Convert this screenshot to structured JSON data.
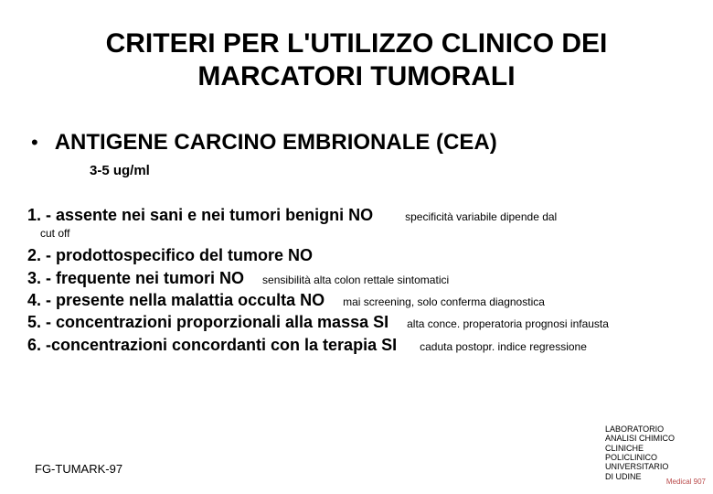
{
  "title": "CRITERI PER L'UTILIZZO CLINICO DEI MARCATORI TUMORALI",
  "bullet_char": "•",
  "subtitle": "ANTIGENE CARCINO EMBRIONALE (CEA)",
  "range": "3-5 ug/ml",
  "criteria": [
    {
      "main": "1. - assente nei sani e nei tumori benigni          NO",
      "note": "specificità variabile dipende dal"
    },
    {
      "cutoff": "cut off"
    },
    {
      "main": "2. - prodottospecifico del tumore          NO",
      "note": ""
    },
    {
      "main": "3. - frequente nei tumori             NO",
      "note": "sensibilità alta colon rettale sintomatici"
    },
    {
      "main": "4. - presente nella malattia occulta         NO",
      "note": "mai screening, solo conferma diagnostica"
    },
    {
      "main": "5. - concentrazioni proporzionali alla massa    SI",
      "note": "alta conce. properatoria prognosi infausta"
    },
    {
      "main": "6. -concentrazioni concordanti con la terapia  SI",
      "note": "caduta postopr. indice regressione"
    }
  ],
  "footer_left": "FG-TUMARK-97",
  "footer_right_lines": [
    "LABORATORIO",
    "ANALISI CHIMICO",
    "CLINICHE",
    "POLICLINICO",
    "UNIVERSITARIO",
    "DI UDINE"
  ],
  "corner_mark": "Medical 907"
}
